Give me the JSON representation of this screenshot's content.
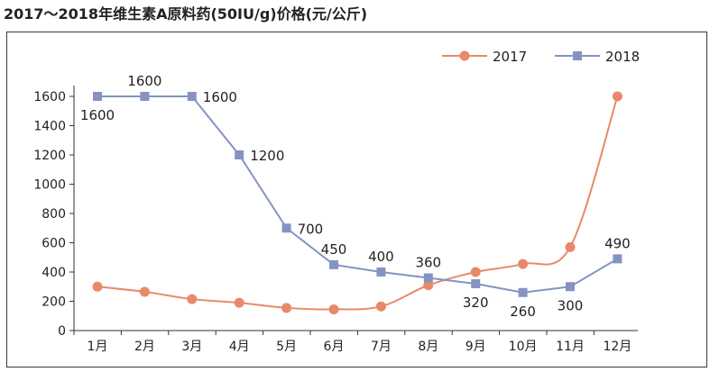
{
  "chart_data": {
    "type": "line",
    "title": "2017～2018年维生素A原料药(50IU/g)价格(元/公斤)",
    "categories": [
      "1月",
      "2月",
      "3月",
      "4月",
      "5月",
      "6月",
      "7月",
      "8月",
      "9月",
      "10月",
      "11月",
      "12月"
    ],
    "ylim": [
      0,
      1600
    ],
    "yticks": [
      0,
      200,
      400,
      600,
      800,
      1000,
      1200,
      1400,
      1600
    ],
    "grid": false,
    "legend_position": "top-right",
    "series": [
      {
        "name": "2017",
        "color": "#e8896a",
        "marker": "circle",
        "values": [
          300,
          265,
          215,
          190,
          155,
          145,
          165,
          310,
          400,
          455,
          570,
          1600
        ],
        "data_labels": [
          null,
          null,
          null,
          null,
          null,
          null,
          null,
          null,
          null,
          null,
          null,
          null
        ]
      },
      {
        "name": "2018",
        "color": "#8593c3",
        "marker": "square",
        "values": [
          1600,
          1600,
          1600,
          1200,
          700,
          450,
          400,
          360,
          320,
          260,
          300,
          490
        ],
        "data_labels": [
          "1600",
          "1600",
          "1600",
          "1200",
          "700",
          "450",
          "400",
          "360",
          "320",
          "260",
          "300",
          "490"
        ],
        "label_positions": [
          "below",
          "above",
          "right",
          "right",
          "right",
          "above",
          "above",
          "above",
          "below",
          "below",
          "below",
          "above"
        ]
      }
    ]
  }
}
